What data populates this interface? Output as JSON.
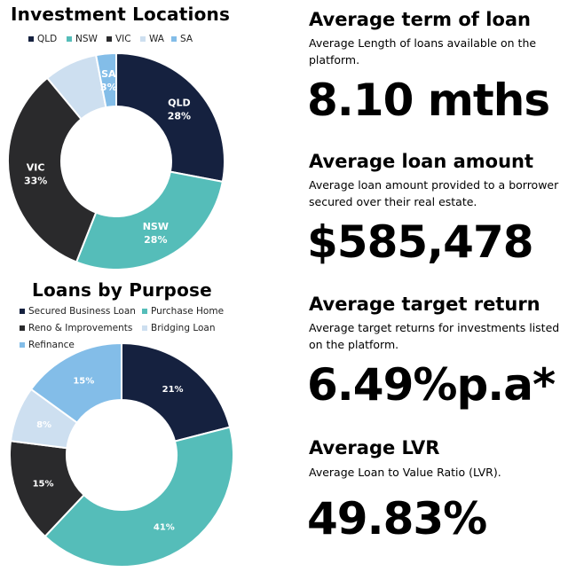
{
  "charts": {
    "locations": {
      "title": "Investment Locations",
      "legend": [
        {
          "label": "QLD",
          "color": "#15213f"
        },
        {
          "label": "NSW",
          "color": "#55bdb9"
        },
        {
          "label": "VIC",
          "color": "#2a2a2c"
        },
        {
          "label": "WA",
          "color": "#cddff0"
        },
        {
          "label": "SA",
          "color": "#83bde8"
        }
      ]
    },
    "purpose": {
      "title": "Loans by Purpose",
      "legend": [
        {
          "label": "Secured Business Loan",
          "color": "#15213f"
        },
        {
          "label": "Purchase Home",
          "color": "#55bdb9"
        },
        {
          "label": "Reno & Improvements",
          "color": "#2a2a2c"
        },
        {
          "label": "Bridging Loan",
          "color": "#cddff0"
        },
        {
          "label": "Refinance",
          "color": "#83bde8"
        }
      ]
    }
  },
  "chart_data": [
    {
      "type": "pie",
      "title": "Investment Locations",
      "categories": [
        "QLD",
        "NSW",
        "VIC",
        "WA",
        "SA"
      ],
      "values": [
        28,
        28,
        33,
        8,
        3
      ],
      "labels": [
        "QLD\n28%",
        "NSW\n28%",
        "VIC\n33%",
        "",
        "SA\n3%"
      ],
      "colors": [
        "#15213f",
        "#55bdb9",
        "#2a2a2c",
        "#cddff0",
        "#83bde8"
      ],
      "legend": "top"
    },
    {
      "type": "pie",
      "title": "Loans by Purpose",
      "categories": [
        "Secured Business Loan",
        "Purchase Home",
        "Reno & Improvements",
        "Bridging Loan",
        "Refinance"
      ],
      "values": [
        21,
        41,
        15,
        8,
        15
      ],
      "labels": [
        "21%",
        "41%",
        "15%",
        "8%",
        "15%"
      ],
      "colors": [
        "#15213f",
        "#55bdb9",
        "#2a2a2c",
        "#cddff0",
        "#83bde8"
      ],
      "legend": "top"
    }
  ],
  "stats": [
    {
      "title": "Average term of loan",
      "desc": "Average Length of loans available on the platform.",
      "value": "8.10 mths"
    },
    {
      "title": "Average loan amount",
      "desc": "Average loan amount provided to a borrower secured over their real estate.",
      "value": "$585,478"
    },
    {
      "title": "Average target return",
      "desc": "Average target returns for investments listed on the platform.",
      "value": "6.49%p.a*"
    },
    {
      "title": "Average LVR",
      "desc": "Average Loan to Value Ratio (LVR).",
      "value": "49.83%"
    }
  ]
}
